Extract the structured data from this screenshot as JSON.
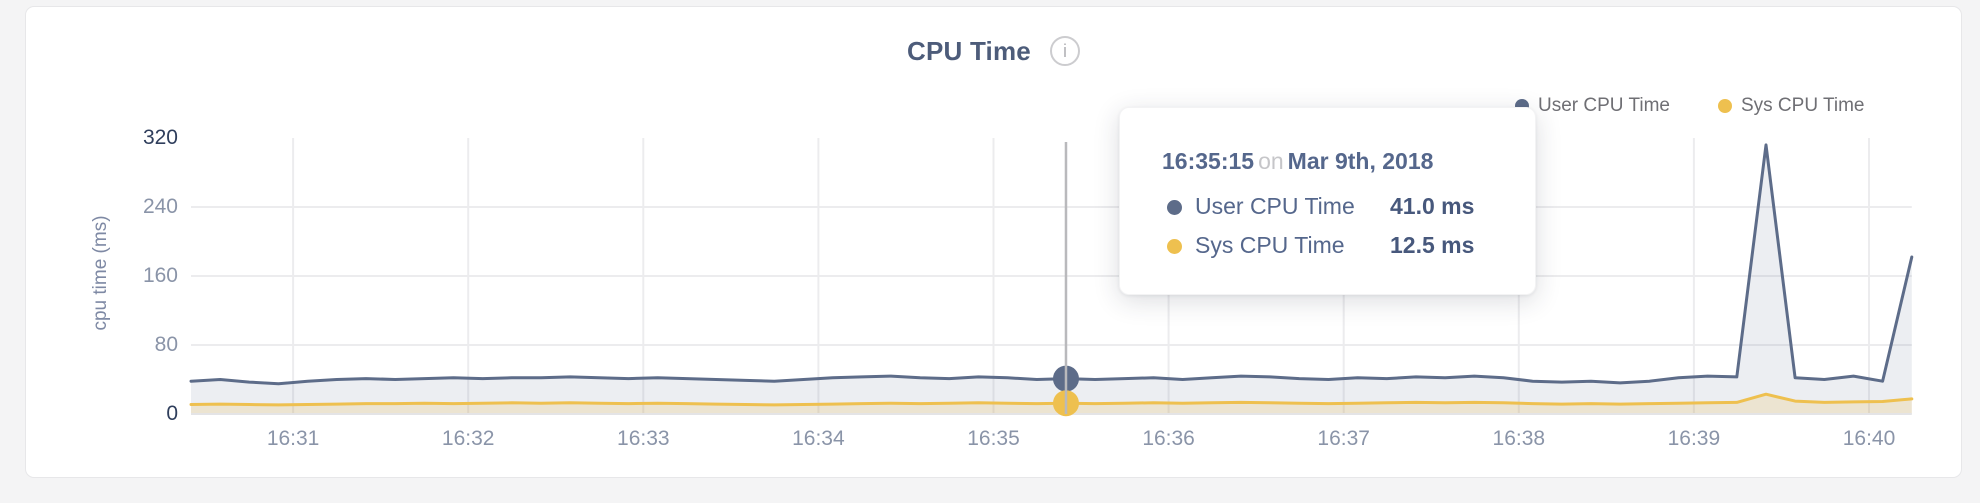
{
  "header": {
    "title": "CPU Time",
    "info_glyph": "i"
  },
  "legend": [
    {
      "label": "User CPU Time",
      "color": "#5d6c89"
    },
    {
      "label": "Sys CPU Time",
      "color": "#eec04f"
    }
  ],
  "tooltip": {
    "time": "16:35:15",
    "conjunction": "on",
    "date": "Mar 9th, 2018",
    "rows": [
      {
        "label": "User CPU Time",
        "value": "41.0 ms",
        "color": "#5d6c89"
      },
      {
        "label": "Sys CPU Time",
        "value": "12.5 ms",
        "color": "#eec04f"
      }
    ]
  },
  "chart_data": {
    "type": "area",
    "title": "CPU Time",
    "ylabel": "cpu time (ms)",
    "ylim": [
      0,
      320
    ],
    "yticks": [
      0,
      80,
      160,
      240,
      320
    ],
    "x_tick_labels": [
      "16:31",
      "16:32",
      "16:33",
      "16:34",
      "16:35",
      "16:36",
      "16:37",
      "16:38",
      "16:39",
      "16:40"
    ],
    "x_step_seconds": 10,
    "grid": true,
    "grid_color": "#ececee",
    "axis_line_color": "#e4e4e6",
    "crosshair_color": "#b9b9bc",
    "legend_position": "top-right",
    "highlight": {
      "index": 30,
      "time": "16:35:15",
      "user_ms": 41.0,
      "sys_ms": 12.5
    },
    "series": [
      {
        "name": "User CPU Time",
        "color": "#5d6c89",
        "fill": "rgba(101,116,146,0.12)",
        "values": [
          38,
          40,
          37,
          35,
          38,
          40,
          41,
          40,
          41,
          42,
          41,
          42,
          42,
          43,
          42,
          41,
          42,
          41,
          40,
          39,
          38,
          40,
          42,
          43,
          44,
          42,
          41,
          43,
          42,
          40,
          41,
          40,
          41,
          42,
          40,
          42,
          44,
          43,
          41,
          40,
          42,
          41,
          43,
          42,
          44,
          42,
          38,
          37,
          38,
          36,
          38,
          42,
          44,
          43,
          312,
          42,
          40,
          44,
          38,
          182
        ]
      },
      {
        "name": "Sys CPU Time",
        "color": "#eec04f",
        "fill": "rgba(238,192,79,0.20)",
        "values": [
          11,
          11.5,
          11,
          10.5,
          11,
          11.5,
          12,
          12,
          12.5,
          12,
          12.5,
          13,
          12.5,
          13,
          12.5,
          12,
          12.5,
          12,
          11.5,
          11,
          10.5,
          11,
          11.5,
          12,
          12.5,
          12,
          12.5,
          13,
          12.5,
          12,
          12.5,
          12,
          12.5,
          13,
          12.5,
          13,
          13.5,
          13,
          12.5,
          12,
          12.5,
          13,
          13.5,
          13,
          13.5,
          13,
          12,
          11.5,
          12,
          11.5,
          12,
          12.5,
          13,
          13.5,
          23,
          15,
          13.5,
          14,
          14.5,
          17.5
        ]
      }
    ]
  }
}
